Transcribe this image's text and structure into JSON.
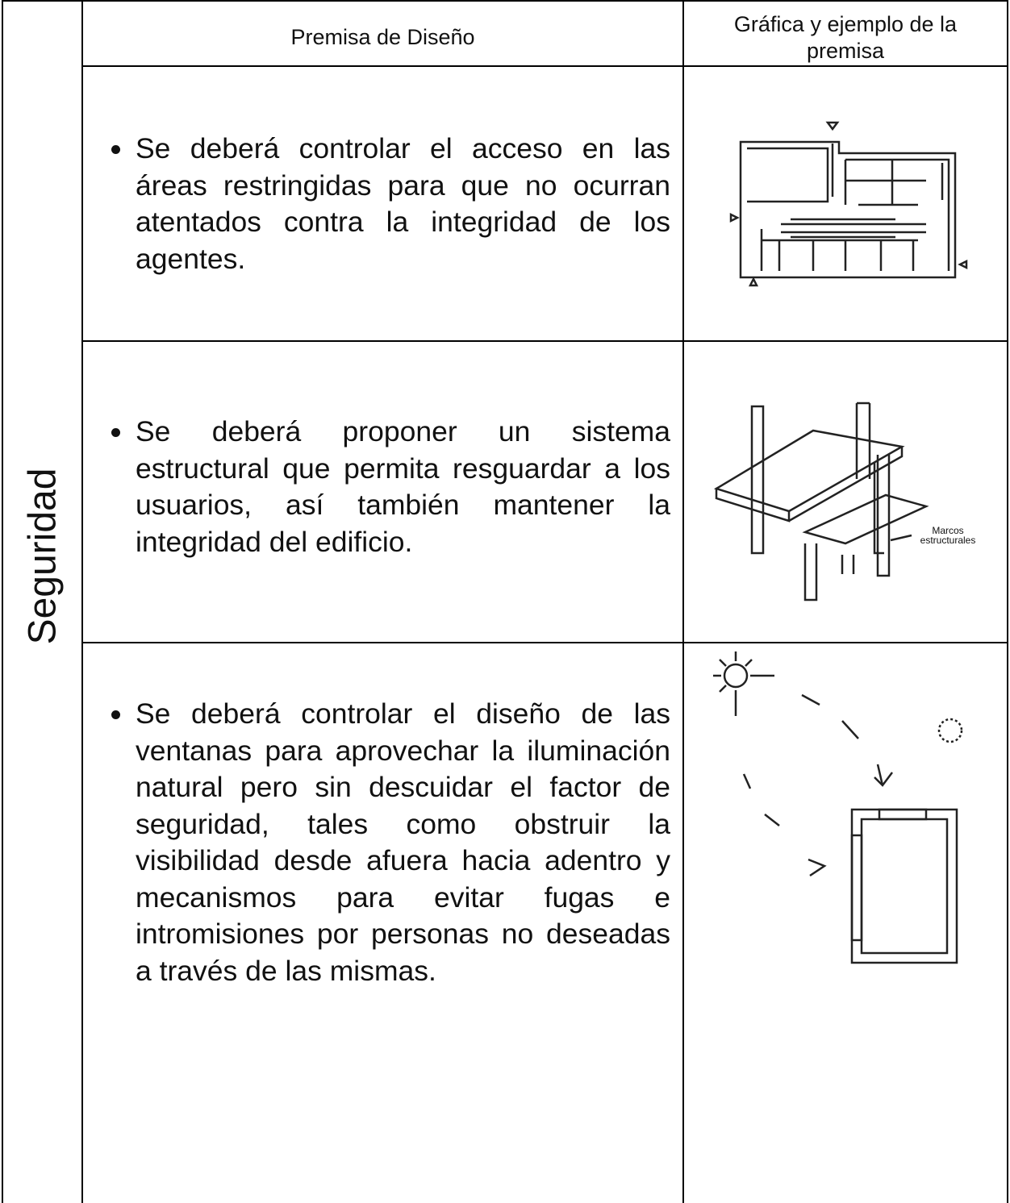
{
  "table": {
    "side_label": "Seguridad",
    "headers": [
      "Premisa de Diseño",
      "Gráfica y ejemplo de la premisa"
    ],
    "rows": [
      {
        "text": "Se deberá controlar el acceso en las áreas restringidas para que no ocurran atentados contra la integridad de los agentes."
      },
      {
        "text": "Se deberá proponer un sistema estructural que permita resguardar a los usuarios, así también mantener la integridad del edificio.",
        "figure_label": "Marcos estructurales"
      },
      {
        "text": "Se deberá controlar el diseño de las ventanas para aprovechar la iluminación natural pero sin descuidar el factor de seguridad, tales como obstruir la visibilidad desde afuera hacia adentro y mecanismos para evitar fugas e intromisiones por personas no deseadas a través de las mismas."
      }
    ]
  }
}
